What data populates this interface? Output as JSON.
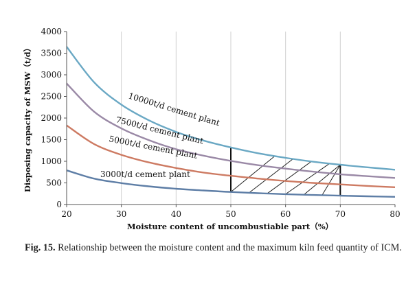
{
  "chart_data": {
    "type": "line",
    "xlabel": "Moisture content of uncombustiable part（%）",
    "ylabel": "Disposing capacity of MSW（t/d）",
    "xlim": [
      20,
      80
    ],
    "ylim": [
      0,
      4000
    ],
    "x_ticks": [
      "20",
      "30",
      "40",
      "50",
      "60",
      "70",
      "80"
    ],
    "y_ticks": [
      "0",
      "500",
      "1000",
      "1500",
      "2000",
      "2500",
      "3000",
      "3500",
      "4000"
    ],
    "grid": "vertical",
    "x": [
      20,
      25,
      30,
      35,
      40,
      45,
      50,
      55,
      60,
      65,
      70,
      75,
      80
    ],
    "series": [
      {
        "name": "10000t/d cement plant",
        "color": "#6aa8c4",
        "values": [
          3650,
          2830,
          2310,
          1950,
          1680,
          1480,
          1320,
          1185,
          1080,
          990,
          920,
          860,
          805
        ]
      },
      {
        "name": "7500t/d cement plant",
        "color": "#9a89a6",
        "values": [
          2800,
          2150,
          1760,
          1490,
          1280,
          1130,
          1010,
          910,
          830,
          760,
          700,
          655,
          615
        ]
      },
      {
        "name": "5000t/d cement plant",
        "color": "#cd7a62",
        "values": [
          1830,
          1400,
          1150,
          975,
          845,
          740,
          665,
          600,
          545,
          500,
          465,
          430,
          400
        ]
      },
      {
        "name": "3000t/d cement plant",
        "color": "#5e7ea6",
        "values": [
          790,
          600,
          495,
          420,
          365,
          325,
          290,
          262,
          240,
          220,
          205,
          190,
          178
        ]
      }
    ],
    "shaded_region": {
      "x_from": 50,
      "x_to": 70,
      "between": [
        "10000t/d cement plant",
        "3000t/d cement plant"
      ],
      "fill": "hatched"
    }
  },
  "caption": {
    "label": "Fig. 15.",
    "text": "Relationship between the moisture content and the maximum kiln feed quantity of ICM."
  }
}
